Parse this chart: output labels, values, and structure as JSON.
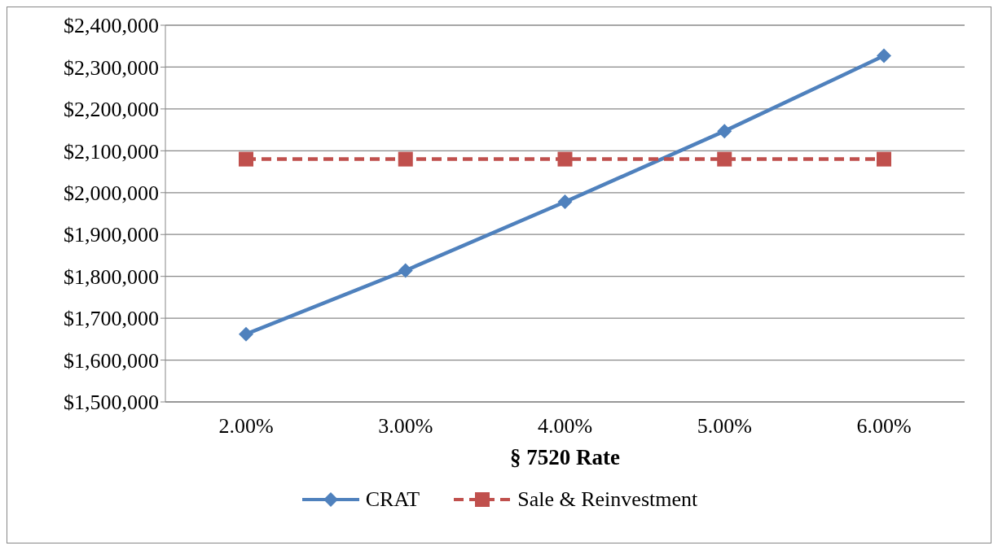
{
  "chart_data": {
    "type": "line",
    "xlabel": "§ 7520 Rate",
    "categories": [
      "2.00%",
      "3.00%",
      "4.00%",
      "5.00%",
      "6.00%"
    ],
    "series": [
      {
        "name": "CRAT",
        "color": "#4f81bd",
        "marker": "diamond",
        "line_style": "solid",
        "values": [
          1662000,
          1814000,
          1978000,
          2147000,
          2327000
        ]
      },
      {
        "name": "Sale & Reinvestment",
        "color": "#c0504d",
        "marker": "square",
        "line_style": "dashed",
        "values": [
          2080000,
          2080000,
          2080000,
          2080000,
          2080000
        ]
      }
    ],
    "ylim": [
      1500000,
      2400000
    ],
    "yticks": [
      {
        "value": 1500000,
        "label": "$1,500,000"
      },
      {
        "value": 1600000,
        "label": "$1,600,000"
      },
      {
        "value": 1700000,
        "label": "$1,700,000"
      },
      {
        "value": 1800000,
        "label": "$1,800,000"
      },
      {
        "value": 1900000,
        "label": "$1,900,000"
      },
      {
        "value": 2000000,
        "label": "$2,000,000"
      },
      {
        "value": 2100000,
        "label": "$2,100,000"
      },
      {
        "value": 2200000,
        "label": "$2,200,000"
      },
      {
        "value": 2300000,
        "label": "$2,300,000"
      },
      {
        "value": 2400000,
        "label": "$2,400,000"
      }
    ],
    "grid": "y",
    "legend": "bottom"
  }
}
